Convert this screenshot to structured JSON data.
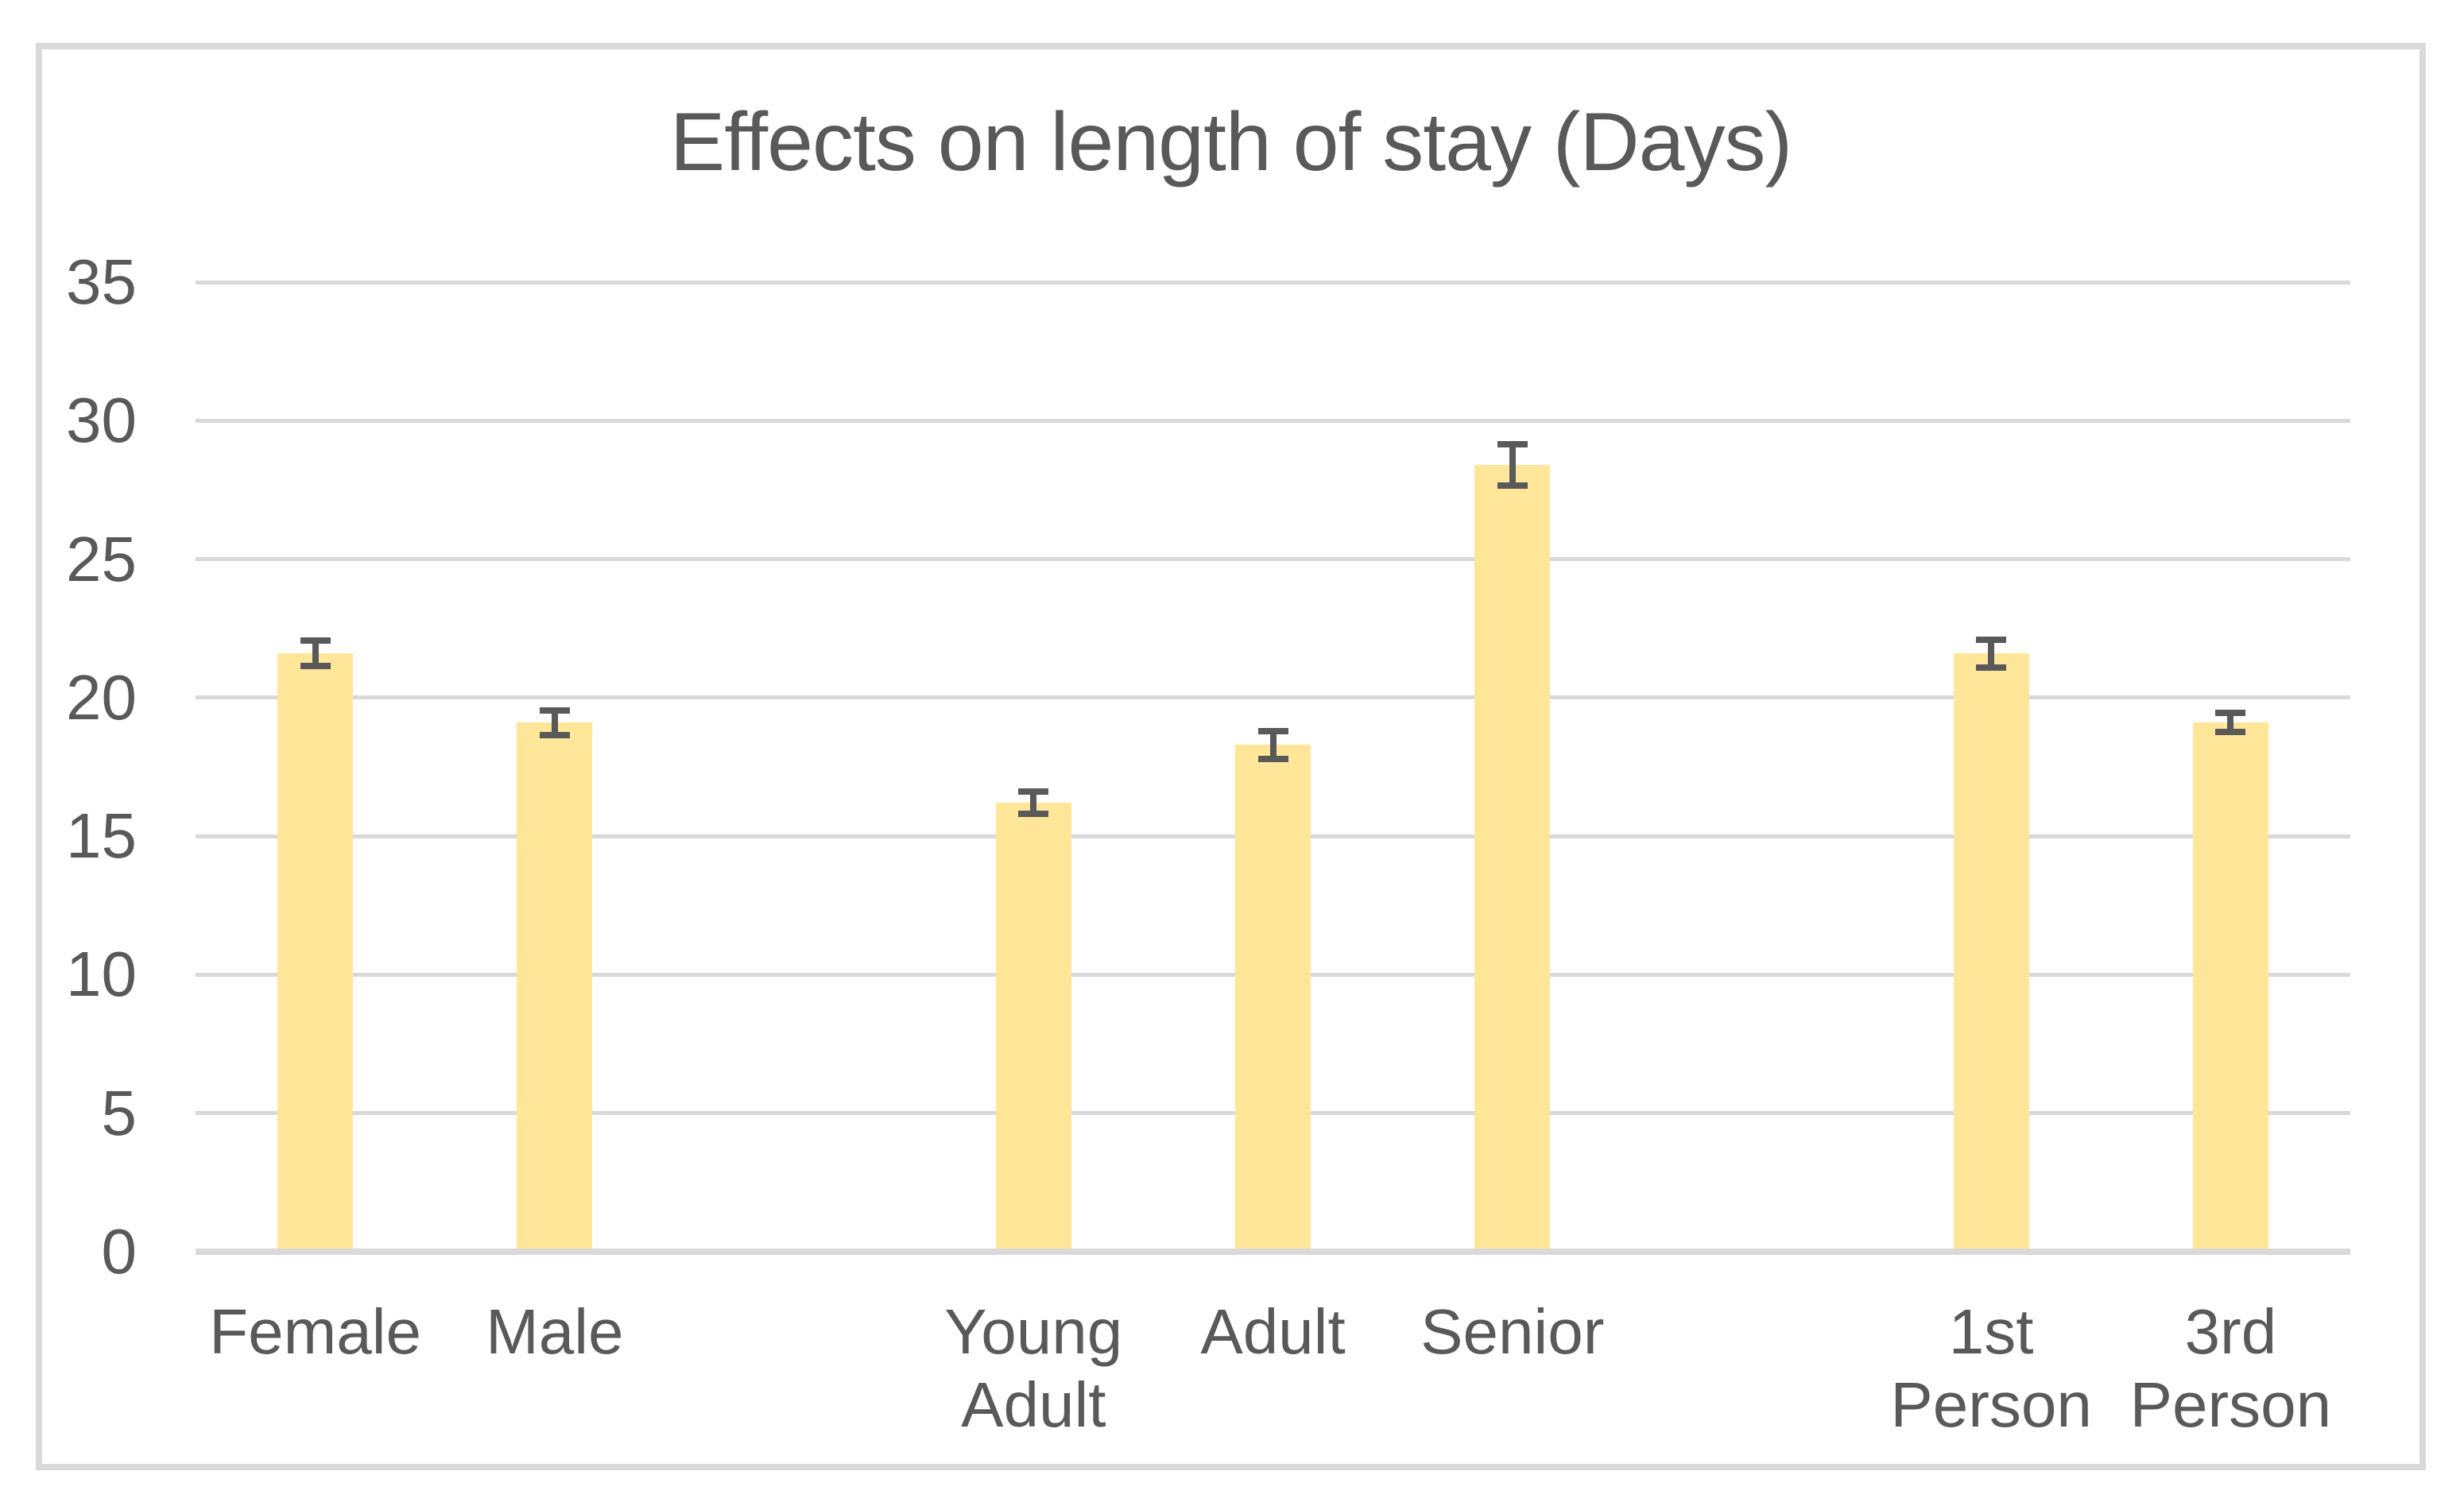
{
  "chart_data": {
    "type": "bar",
    "title": "Effects on length of stay (Days)",
    "categories": [
      "Female",
      "Male",
      "Young Adult",
      "Adult",
      "Senior",
      "1st Person",
      "3rd Person"
    ],
    "values": [
      21.6,
      19.1,
      16.2,
      18.3,
      28.4,
      21.6,
      19.1
    ],
    "error_bars": [
      0.45,
      0.45,
      0.4,
      0.5,
      0.75,
      0.5,
      0.35
    ],
    "label_lines": [
      [
        "Female"
      ],
      [
        "Male"
      ],
      [
        "Young",
        "Adult"
      ],
      [
        "Adult"
      ],
      [
        "Senior"
      ],
      [
        "1st",
        "Person"
      ],
      [
        "3rd",
        "Person"
      ]
    ],
    "xlabel": "",
    "ylabel": "",
    "ylim": [
      0,
      35
    ],
    "ytick_step": 5,
    "ytick_labels": [
      "0",
      "5",
      "10",
      "15",
      "20",
      "25",
      "30",
      "35"
    ],
    "grid": true,
    "legend": "none",
    "groups": {
      "slot_count": 9,
      "bar_slot_indices": [
        0,
        1,
        3,
        4,
        5,
        7,
        8
      ]
    },
    "colors": {
      "bar_fill": "#FFE699",
      "error_bar": "#595959",
      "gridline": "#D9D9D9",
      "axis_line": "#D9D9D9",
      "text": "#595959",
      "frame_border": "#D9D9D9",
      "background": "#FFFFFF"
    }
  }
}
